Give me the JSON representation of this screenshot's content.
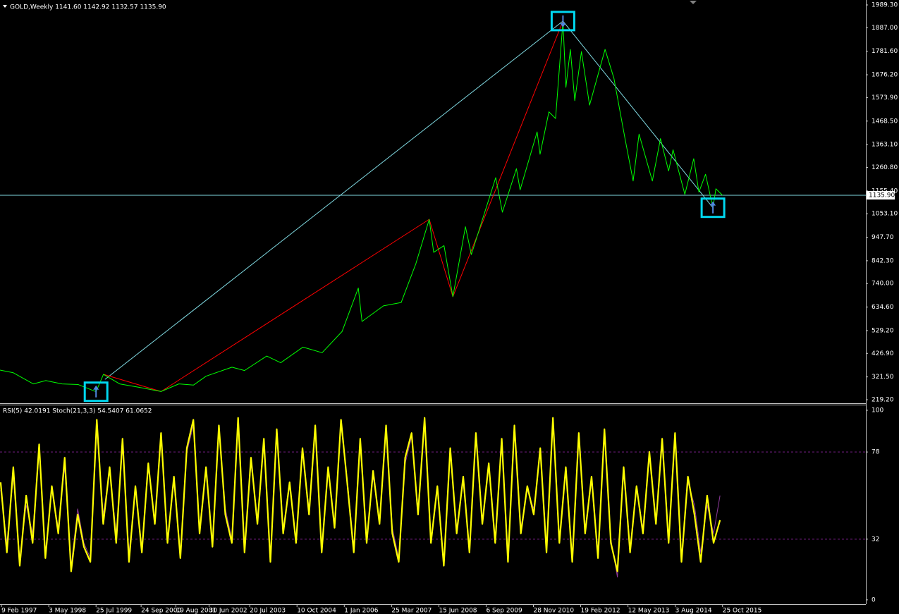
{
  "chart_data": [
    {
      "type": "line",
      "title": "GOLD,Weekly  1141.60 1142.92 1132.57 1135.90",
      "xlim": [
        "1997-01-26",
        "2019-07-14"
      ],
      "ylim": [
        206.6,
        2008.3
      ],
      "yticks": [
        {
          "value": 219.2,
          "label": "219.20"
        },
        {
          "value": 321.5,
          "label": "321.50"
        },
        {
          "value": 426.9,
          "label": "426.90"
        },
        {
          "value": 529.2,
          "label": "529.20"
        },
        {
          "value": 634.6,
          "label": "634.60"
        },
        {
          "value": 740,
          "label": "740.00"
        },
        {
          "value": 842.3,
          "label": "842.30"
        },
        {
          "value": 947.7,
          "label": "947.70"
        },
        {
          "value": 1053.1,
          "label": "1053.10"
        },
        {
          "value": 1155.4,
          "label": "1155.40"
        },
        {
          "value": 1260.8,
          "label": "1260.80"
        },
        {
          "value": 1363.1,
          "label": "1363.10"
        },
        {
          "value": 1468.5,
          "label": "1468.50"
        },
        {
          "value": 1573.9,
          "label": "1573.90"
        },
        {
          "value": 1676.2,
          "label": "1676.20"
        },
        {
          "value": 1781.6,
          "label": "1781.60"
        },
        {
          "value": 1887,
          "label": "1887.00"
        },
        {
          "value": 1989.3,
          "label": "1989.30"
        }
      ],
      "x": [
        "1997-01-26",
        "1997-06-01",
        "1997-12-07",
        "1998-04-05",
        "1998-09-06",
        "1999-02-07",
        "1999-07-25",
        "1999-10-03",
        "2000-03-05",
        "2000-09-03",
        "2001-04-01",
        "2001-09-16",
        "2002-02-03",
        "2002-06-02",
        "2003-02-02",
        "2003-06-01",
        "2003-12-28",
        "2004-05-09",
        "2004-12-05",
        "2005-06-05",
        "2005-12-11",
        "2006-05-14",
        "2006-06-18",
        "2007-01-07",
        "2007-06-24",
        "2007-11-11",
        "2008-03-16",
        "2008-04-27",
        "2008-08-03",
        "2008-10-26",
        "2009-02-22",
        "2009-04-19",
        "2009-12-06",
        "2010-02-07",
        "2010-06-20",
        "2010-07-25",
        "2011-01-02",
        "2011-01-30",
        "2011-04-24",
        "2011-06-26",
        "2011-09-04",
        "2011-10-02",
        "2011-11-13",
        "2011-12-25",
        "2012-02-26",
        "2012-05-13",
        "2012-10-07",
        "2012-12-30",
        "2013-04-14",
        "2013-06-30",
        "2013-08-25",
        "2013-12-29",
        "2014-03-16",
        "2014-06-01",
        "2014-07-13",
        "2014-11-02",
        "2015-01-25",
        "2015-03-15",
        "2015-05-17",
        "2015-07-26",
        "2015-08-23",
        "2015-10-25"
      ],
      "series": [
        {
          "color": "#00ff00",
          "values": [
            352,
            340,
            290,
            305,
            290,
            287,
            255,
            333,
            290,
            275,
            256,
            290,
            285,
            325,
            365,
            350,
            415,
            385,
            455,
            430,
            525,
            720,
            570,
            640,
            655,
            830,
            1028,
            880,
            910,
            681,
            995,
            870,
            1215,
            1060,
            1255,
            1160,
            1420,
            1320,
            1510,
            1480,
            1917,
            1620,
            1790,
            1560,
            1780,
            1540,
            1790,
            1660,
            1390,
            1200,
            1410,
            1200,
            1390,
            1245,
            1340,
            1140,
            1300,
            1150,
            1230,
            1080,
            1165,
            1135.9
          ]
        }
      ],
      "zigzag": {
        "color": "#ff0000",
        "x": [
          "1999-10-03",
          "2001-04-01",
          "2008-03-16",
          "2008-10-26",
          "2011-09-04"
        ],
        "values": [
          333,
          256,
          1028,
          681,
          1917
        ]
      },
      "trendlines": {
        "color": "#7fd8e0",
        "x": [
          "1999-10-17",
          "2011-09-04",
          "2015-07-26"
        ],
        "values": [
          310,
          1917,
          1080
        ]
      },
      "signals": {
        "color": "#00d8f0",
        "x": [
          "1999-07-25",
          "2011-09-04",
          "2015-07-26"
        ],
        "values": [
          255,
          1917,
          1080
        ],
        "direction": [
          "up",
          "down",
          "up"
        ]
      },
      "last_price": {
        "value": 1135.9,
        "label": "1135.90",
        "color": "#7fd8e0"
      }
    },
    {
      "type": "line",
      "title": "RSI(5) 42.0191  Stoch(21,3,3) 54.5407 61.0652",
      "xlim": [
        "1997-01-26",
        "2019-07-14"
      ],
      "ylim": [
        -1.9,
        102.6
      ],
      "yticks": [
        0,
        32,
        78,
        100
      ],
      "levels": [
        32,
        78
      ],
      "xticks": [
        {
          "value": "1997-02-09",
          "label": "9 Feb 1997"
        },
        {
          "value": "1998-05-03",
          "label": "3 May 1998"
        },
        {
          "value": "1999-07-25",
          "label": "25 Jul 1999"
        },
        {
          "value": "2000-09-24",
          "label": "24 Sep 2000"
        },
        {
          "value": "2001-08-19",
          "label": "19 Aug 2001"
        },
        {
          "value": "2002-06-30",
          "label": "30 Jun 2002"
        },
        {
          "value": "2003-07-20",
          "label": "20 Jul 2003"
        },
        {
          "value": "2004-10-10",
          "label": "10 Oct 2004"
        },
        {
          "value": "2006-01-01",
          "label": "1 Jan 2006"
        },
        {
          "value": "2007-03-25",
          "label": "25 Mar 2007"
        },
        {
          "value": "2008-06-15",
          "label": "15 Jun 2008"
        },
        {
          "value": "2009-09-06",
          "label": "6 Sep 2009"
        },
        {
          "value": "2010-11-28",
          "label": "28 Nov 2010"
        },
        {
          "value": "2012-02-19",
          "label": "19 Feb 2012"
        },
        {
          "value": "2013-05-12",
          "label": "12 May 2013"
        },
        {
          "value": "2014-08-03",
          "label": "3 Aug 2014"
        },
        {
          "value": "2015-10-25",
          "label": "25 Oct 2015"
        }
      ],
      "x": [
        "1997-02-01",
        "1997-04-01",
        "1997-06-01",
        "1997-08-01",
        "1997-10-01",
        "1997-12-01",
        "1998-02-01",
        "1998-04-01",
        "1998-06-01",
        "1998-08-01",
        "1998-10-01",
        "1998-12-01",
        "1999-02-01",
        "1999-04-01",
        "1999-06-01",
        "1999-08-01",
        "1999-10-01",
        "1999-12-01",
        "2000-02-01",
        "2000-04-01",
        "2000-06-01",
        "2000-08-01",
        "2000-10-01",
        "2000-12-01",
        "2001-02-01",
        "2001-04-01",
        "2001-06-01",
        "2001-08-01",
        "2001-10-01",
        "2001-12-01",
        "2002-02-01",
        "2002-04-01",
        "2002-06-01",
        "2002-08-01",
        "2002-10-01",
        "2002-12-01",
        "2003-02-01",
        "2003-04-01",
        "2003-06-01",
        "2003-08-01",
        "2003-10-01",
        "2003-12-01",
        "2004-02-01",
        "2004-04-01",
        "2004-06-01",
        "2004-08-01",
        "2004-10-01",
        "2004-12-01",
        "2005-02-01",
        "2005-04-01",
        "2005-06-01",
        "2005-08-01",
        "2005-10-01",
        "2005-12-01",
        "2006-02-01",
        "2006-04-01",
        "2006-06-01",
        "2006-08-01",
        "2006-10-01",
        "2006-12-01",
        "2007-02-01",
        "2007-04-01",
        "2007-06-01",
        "2007-08-01",
        "2007-10-01",
        "2007-12-01",
        "2008-02-01",
        "2008-04-01",
        "2008-06-01",
        "2008-08-01",
        "2008-10-01",
        "2008-12-01",
        "2009-02-01",
        "2009-04-01",
        "2009-06-01",
        "2009-08-01",
        "2009-10-01",
        "2009-12-01",
        "2010-02-01",
        "2010-04-01",
        "2010-06-01",
        "2010-08-01",
        "2010-10-01",
        "2010-12-01",
        "2011-02-01",
        "2011-04-01",
        "2011-06-01",
        "2011-08-01",
        "2011-10-01",
        "2011-12-01",
        "2012-02-01",
        "2012-04-01",
        "2012-06-01",
        "2012-08-01",
        "2012-10-01",
        "2012-12-01",
        "2013-02-01",
        "2013-04-01",
        "2013-06-01",
        "2013-08-01",
        "2013-10-01",
        "2013-12-01",
        "2014-02-01",
        "2014-04-01",
        "2014-06-01",
        "2014-08-01",
        "2014-10-01",
        "2014-12-01",
        "2015-02-01",
        "2015-04-01",
        "2015-06-01",
        "2015-08-01",
        "2015-10-01"
      ],
      "series": [
        {
          "color": "#8e3a9c",
          "values": [
            58,
            30,
            65,
            22,
            50,
            35,
            78,
            25,
            58,
            38,
            70,
            18,
            48,
            30,
            22,
            90,
            45,
            68,
            35,
            80,
            25,
            58,
            28,
            70,
            42,
            85,
            32,
            62,
            25,
            78,
            92,
            38,
            68,
            30,
            90,
            48,
            32,
            94,
            28,
            72,
            42,
            82,
            22,
            88,
            38,
            60,
            32,
            78,
            48,
            90,
            28,
            68,
            40,
            92,
            62,
            28,
            82,
            32,
            65,
            42,
            90,
            38,
            22,
            72,
            86,
            48,
            94,
            32,
            58,
            20,
            78,
            38,
            62,
            28,
            85,
            42,
            70,
            32,
            82,
            22,
            90,
            38,
            58,
            48,
            78,
            28,
            94,
            32,
            68,
            22,
            85,
            38,
            62,
            25,
            88,
            32,
            12,
            68,
            28,
            58,
            38,
            75,
            42,
            82,
            32,
            85,
            22,
            62,
            50,
            25,
            50,
            35,
            55
          ]
        },
        {
          "color": "#ffff00",
          "values": [
            62,
            25,
            70,
            18,
            55,
            30,
            82,
            22,
            60,
            35,
            75,
            15,
            45,
            28,
            20,
            95,
            40,
            70,
            30,
            85,
            20,
            60,
            25,
            72,
            40,
            88,
            30,
            65,
            22,
            80,
            95,
            35,
            70,
            28,
            92,
            45,
            30,
            96,
            25,
            75,
            40,
            85,
            20,
            90,
            35,
            62,
            30,
            80,
            45,
            92,
            25,
            70,
            38,
            95,
            60,
            25,
            85,
            30,
            68,
            40,
            92,
            35,
            20,
            75,
            88,
            45,
            96,
            30,
            60,
            18,
            80,
            35,
            65,
            25,
            88,
            40,
            72,
            30,
            85,
            20,
            92,
            35,
            60,
            45,
            80,
            25,
            96,
            30,
            70,
            20,
            88,
            35,
            65,
            22,
            90,
            30,
            15,
            70,
            25,
            60,
            35,
            78,
            40,
            85,
            30,
            88,
            20,
            65,
            45,
            20,
            55,
            30,
            42
          ]
        }
      ]
    }
  ]
}
